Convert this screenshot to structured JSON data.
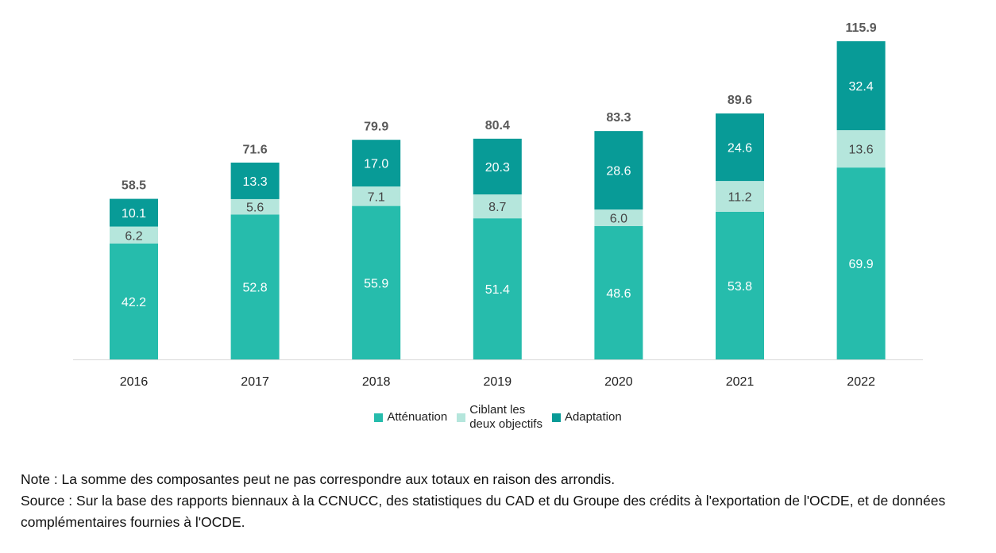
{
  "chart_data": {
    "type": "bar",
    "stacked": true,
    "categories": [
      "2016",
      "2017",
      "2018",
      "2019",
      "2020",
      "2021",
      "2022"
    ],
    "series": [
      {
        "name": "Atténuation",
        "color": "#26bcac",
        "label_color": "#ffffff",
        "values": [
          42.2,
          52.8,
          55.9,
          51.4,
          48.6,
          53.8,
          69.9
        ]
      },
      {
        "name": "Ciblant les\ndeux objectifs",
        "color": "#b5e6dc",
        "label_color": "#444444",
        "values": [
          6.2,
          5.6,
          7.1,
          8.7,
          6.0,
          11.2,
          13.6
        ]
      },
      {
        "name": "Adaptation",
        "color": "#089b97",
        "label_color": "#ffffff",
        "values": [
          10.1,
          13.3,
          17.0,
          20.3,
          28.6,
          24.6,
          32.4
        ]
      }
    ],
    "totals": [
      58.5,
      71.6,
      79.9,
      80.4,
      83.3,
      89.6,
      115.9
    ],
    "title": "",
    "xlabel": "",
    "ylabel": "",
    "ylim": [
      0,
      115.9
    ],
    "grid": false,
    "legend_position": "bottom"
  },
  "notes": {
    "note": "Note : La somme des composantes peut ne pas correspondre aux totaux en raison des arrondis.",
    "source": "Source : Sur la base des rapports biennaux à la CCNUCC, des statistiques du CAD et du Groupe des crédits à l'exportation de l'OCDE, et de données complémentaires fournies à l'OCDE."
  }
}
